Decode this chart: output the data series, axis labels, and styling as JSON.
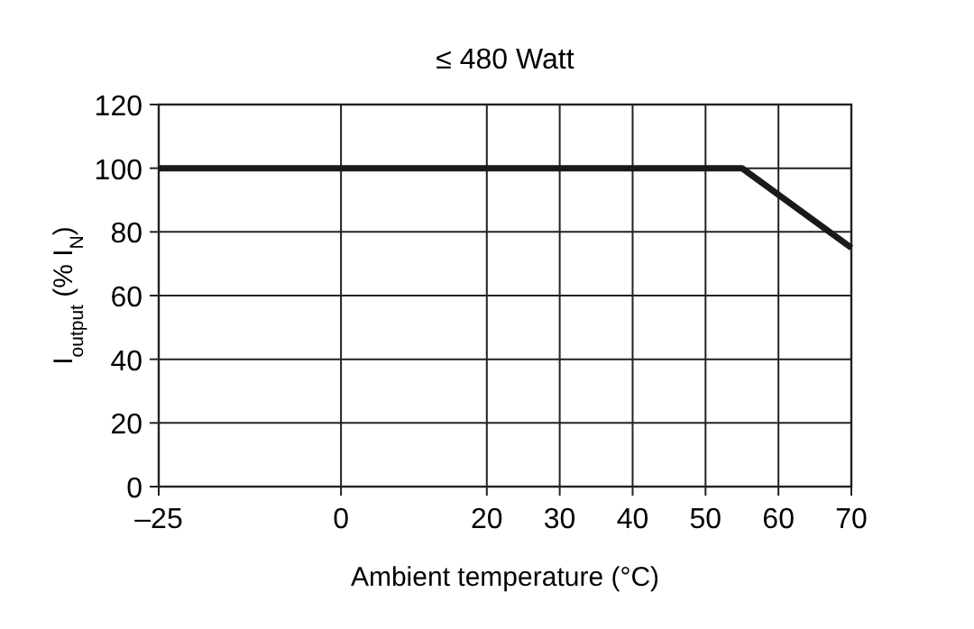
{
  "chart_data": {
    "type": "line",
    "title": "≤ 480 Watt",
    "xlabel": "Ambient temperature (°C)",
    "ylabel": "I$_{output}$ (% I$_{N}$)",
    "x": [
      -25,
      55,
      70
    ],
    "series": [
      {
        "color": "#1a1a1a",
        "values": [
          100,
          100,
          75
        ]
      }
    ],
    "xlim": [
      -25,
      70
    ],
    "xticks": [
      {
        "value": -25,
        "label": "–25"
      },
      0,
      20,
      30,
      40,
      50,
      60,
      70
    ],
    "ylim": [
      0,
      120
    ],
    "yticks": [
      0,
      20,
      40,
      60,
      80,
      100,
      120
    ],
    "grid": true,
    "marker": "none",
    "line_style": "solid"
  }
}
